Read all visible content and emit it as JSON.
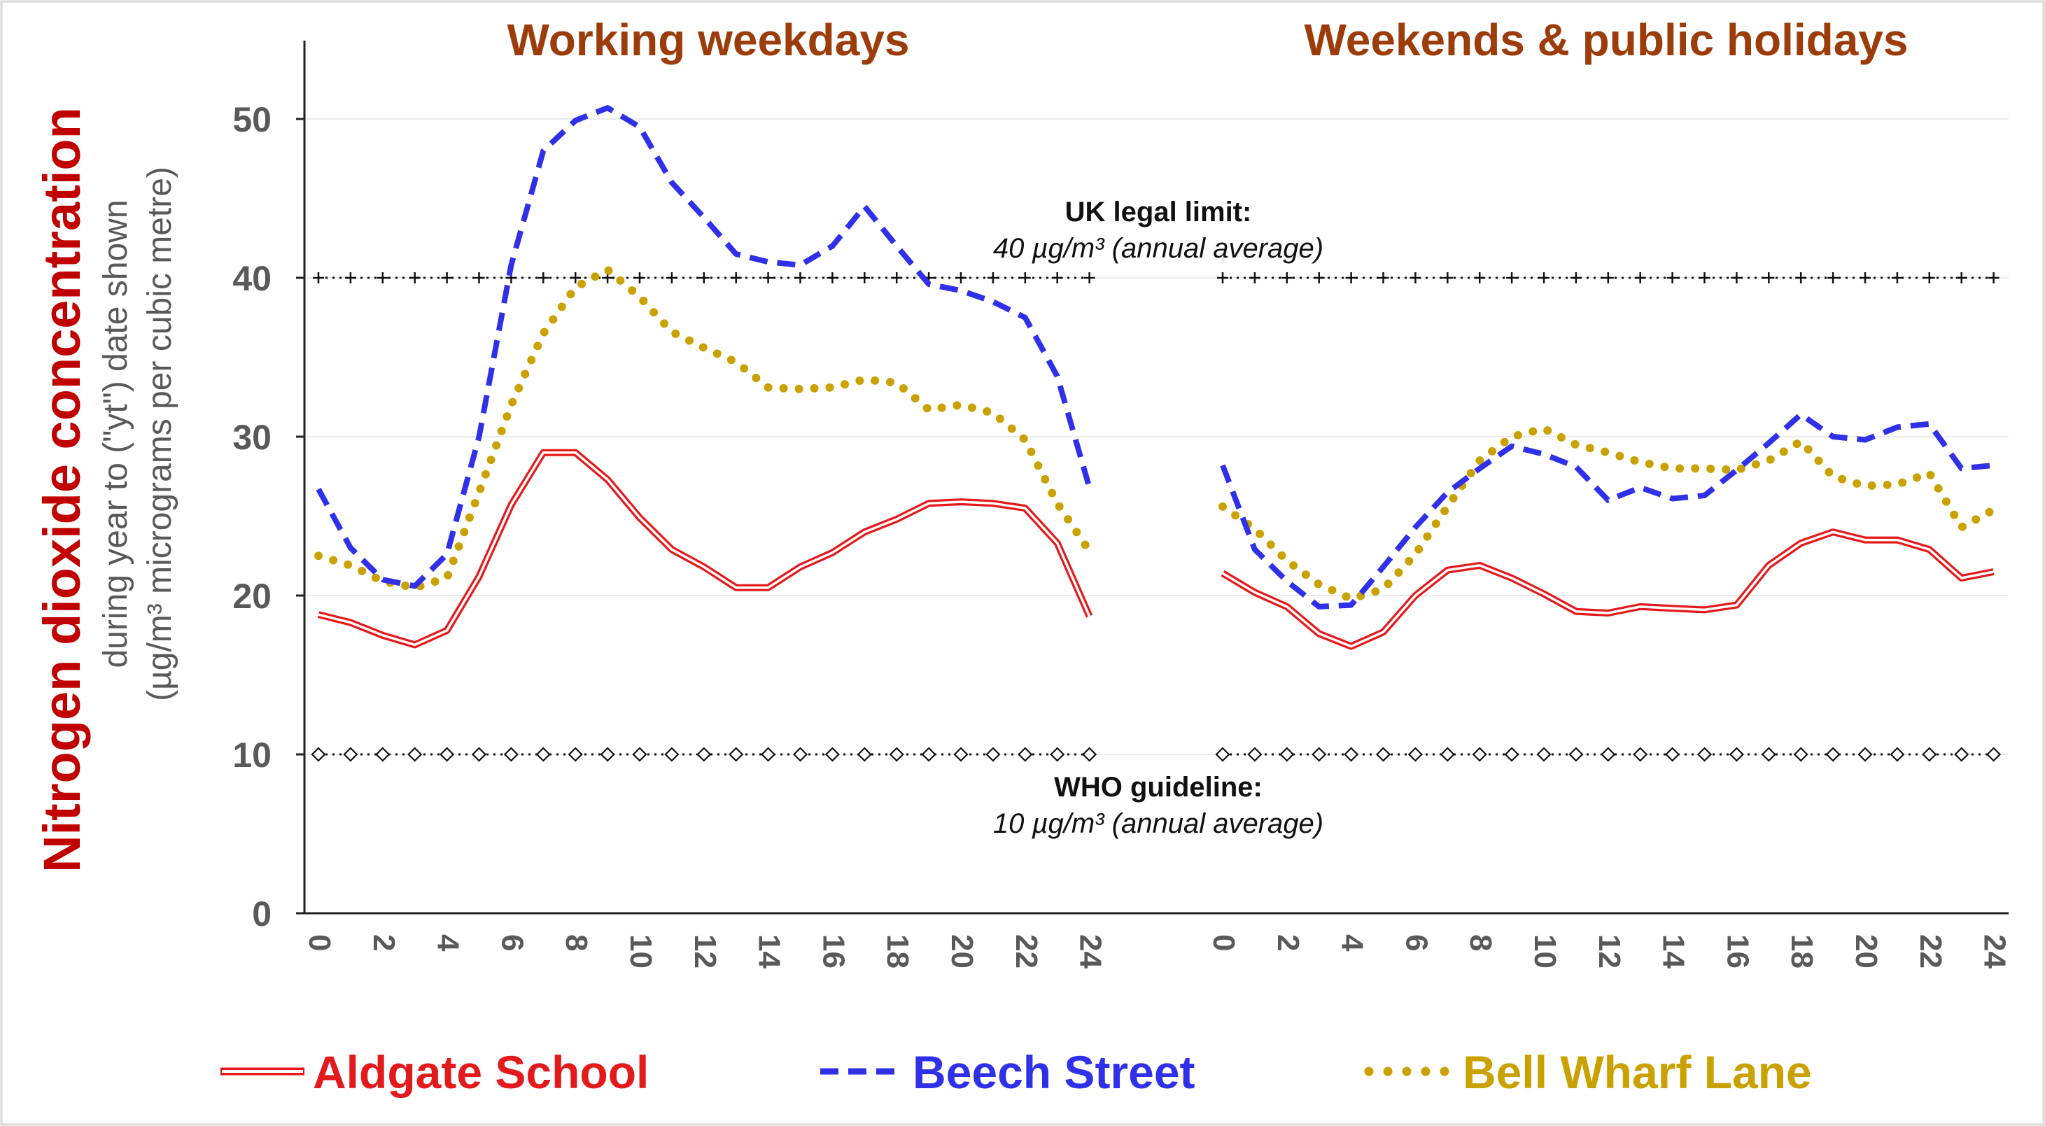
{
  "chart_data": {
    "type": "line",
    "ylabel_main": "Nitrogen dioxide concentration",
    "ylabel_sub1": "during year to (\"yt\") date shown",
    "ylabel_sub2": "(µg/m³ micrograms per cubic metre)",
    "ylim": [
      0,
      55
    ],
    "yticks": [
      0,
      10,
      20,
      30,
      40,
      50
    ],
    "xticks": [
      0,
      2,
      4,
      6,
      8,
      10,
      12,
      14,
      16,
      18,
      20,
      22,
      24
    ],
    "grid": true,
    "panels": [
      {
        "title": "Working weekdays",
        "x": [
          0,
          1,
          2,
          3,
          4,
          5,
          6,
          7,
          8,
          9,
          10,
          11,
          12,
          13,
          14,
          15,
          16,
          17,
          18,
          19,
          20,
          21,
          22,
          23,
          24
        ],
        "series": [
          {
            "name": "Aldgate School",
            "values": [
              18.8,
              18.3,
              17.5,
              16.9,
              17.8,
              21.2,
              25.7,
              29.0,
              29.0,
              27.3,
              24.9,
              22.9,
              21.8,
              20.5,
              20.5,
              21.8,
              22.7,
              24.0,
              24.8,
              25.8,
              25.9,
              25.8,
              25.5,
              23.3,
              18.7
            ]
          },
          {
            "name": "Beech Street",
            "values": [
              26.7,
              23.0,
              21.0,
              20.6,
              22.6,
              30.0,
              40.8,
              48.0,
              49.9,
              50.7,
              49.5,
              46.0,
              43.8,
              41.5,
              41.0,
              40.8,
              42.0,
              44.5,
              42.0,
              39.6,
              39.2,
              38.5,
              37.5,
              33.8,
              26.8
            ]
          },
          {
            "name": "Bell Wharf Lane",
            "values": [
              22.5,
              21.9,
              20.9,
              20.5,
              21.1,
              26.5,
              32.0,
              36.5,
              39.4,
              40.5,
              38.8,
              36.6,
              35.6,
              34.7,
              33.1,
              33.0,
              33.1,
              33.6,
              33.4,
              31.7,
              32.0,
              31.5,
              29.8,
              25.8,
              22.8
            ]
          }
        ]
      },
      {
        "title": "Weekends & public holidays",
        "x": [
          0,
          1,
          2,
          3,
          4,
          5,
          6,
          7,
          8,
          9,
          10,
          11,
          12,
          13,
          14,
          15,
          16,
          17,
          18,
          19,
          20,
          21,
          22,
          23,
          24
        ],
        "series": [
          {
            "name": "Aldgate School",
            "values": [
              21.4,
              20.2,
              19.3,
              17.6,
              16.8,
              17.7,
              20.0,
              21.6,
              21.9,
              21.1,
              20.1,
              19.0,
              18.9,
              19.3,
              19.2,
              19.1,
              19.4,
              21.9,
              23.3,
              24.0,
              23.5,
              23.5,
              22.9,
              21.1,
              21.5
            ]
          },
          {
            "name": "Beech Street",
            "values": [
              28.2,
              22.9,
              20.9,
              19.3,
              19.4,
              21.8,
              24.3,
              26.5,
              28.0,
              29.4,
              28.9,
              28.1,
              26.0,
              26.8,
              26.1,
              26.3,
              27.9,
              29.6,
              31.4,
              30.0,
              29.8,
              30.6,
              30.8,
              28.0,
              28.2
            ]
          },
          {
            "name": "Bell Wharf Lane",
            "values": [
              25.6,
              24.2,
              22.2,
              20.7,
              19.8,
              20.4,
              22.6,
              25.6,
              28.5,
              30.0,
              30.5,
              29.5,
              29.0,
              28.4,
              28.0,
              28.0,
              27.9,
              28.5,
              29.7,
              27.5,
              26.9,
              27.0,
              27.7,
              24.3,
              25.4
            ]
          }
        ]
      }
    ],
    "reference_lines": [
      {
        "name": "UK legal limit",
        "value": 40,
        "label_bold": "UK legal limit:",
        "label_italic": "40 µg/m³ (annual average)"
      },
      {
        "name": "WHO guideline",
        "value": 10,
        "label_bold": "WHO guideline:",
        "label_italic": "10 µg/m³ (annual average)"
      }
    ],
    "legend": [
      {
        "name": "Aldgate School",
        "color": "#e31a1c"
      },
      {
        "name": "Beech Street",
        "color": "#3030e8"
      },
      {
        "name": "Bell Wharf Lane",
        "color": "#c9a100"
      }
    ],
    "colors": {
      "aldgate": "#e31a1c",
      "beech": "#3030e8",
      "bell": "#c9a100",
      "title": "#9c3c0b",
      "ylabel": "#c00000"
    }
  }
}
